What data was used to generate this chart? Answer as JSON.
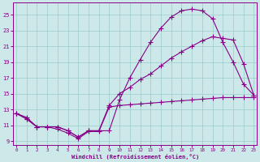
{
  "bg_color": "#cce8e8",
  "line_color": "#880088",
  "grid_color": "#99cccc",
  "xlabel": "Windchill (Refroidissement éolien,°C)",
  "x_ticks": [
    0,
    1,
    2,
    3,
    4,
    5,
    6,
    7,
    8,
    9,
    10,
    11,
    12,
    13,
    14,
    15,
    16,
    17,
    18,
    19,
    20,
    21,
    22,
    23
  ],
  "ylim": [
    8.5,
    26.5
  ],
  "xlim": [
    -0.3,
    23.3
  ],
  "y_ticks": [
    9,
    11,
    13,
    15,
    17,
    19,
    21,
    23,
    25
  ],
  "curve_top_x": [
    0,
    1,
    2,
    3,
    4,
    5,
    6,
    7,
    8,
    9,
    10,
    11,
    12,
    13,
    14,
    15,
    16,
    17,
    18,
    19,
    20,
    21,
    22,
    23
  ],
  "curve_top_y": [
    12.5,
    11.8,
    10.8,
    10.8,
    10.8,
    10.3,
    9.5,
    10.3,
    10.3,
    10.3,
    14.2,
    17.0,
    19.3,
    21.5,
    23.3,
    24.7,
    25.5,
    25.7,
    25.5,
    24.5,
    21.5,
    19.0,
    16.2,
    14.8
  ],
  "curve_mid_x": [
    0,
    1,
    2,
    3,
    4,
    5,
    6,
    7,
    8,
    9,
    10,
    11,
    12,
    13,
    14,
    15,
    16,
    17,
    18,
    19,
    20,
    21,
    22,
    23
  ],
  "curve_mid_y": [
    12.5,
    11.8,
    10.8,
    10.8,
    10.8,
    10.3,
    9.5,
    10.3,
    10.3,
    13.5,
    15.0,
    15.8,
    16.8,
    17.5,
    18.5,
    19.5,
    20.3,
    21.0,
    21.7,
    22.2,
    22.0,
    21.8,
    18.8,
    14.8
  ],
  "curve_bot_x": [
    0,
    1,
    2,
    3,
    4,
    5,
    6,
    7,
    8,
    9,
    10,
    11,
    12,
    13,
    14,
    15,
    16,
    17,
    18,
    19,
    20,
    21,
    22,
    23
  ],
  "curve_bot_y": [
    12.5,
    12.0,
    10.8,
    10.8,
    10.5,
    10.0,
    9.3,
    10.2,
    10.2,
    13.3,
    13.5,
    13.6,
    13.7,
    13.8,
    13.9,
    14.0,
    14.1,
    14.2,
    14.3,
    14.4,
    14.5,
    14.5,
    14.5,
    14.5
  ]
}
